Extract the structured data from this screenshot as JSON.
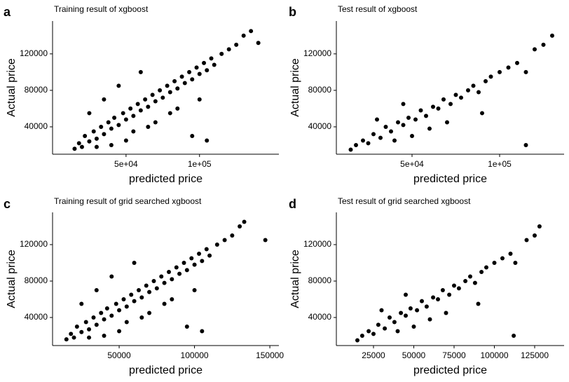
{
  "chart_data": [
    {
      "type": "scatter",
      "panel_label": "a",
      "title": "Training result of xgboost",
      "x_label": "predicted price",
      "y_label": "Actual price",
      "color": "#000000",
      "xlim": [
        0,
        154000
      ],
      "ylim": [
        10000,
        156000
      ],
      "xticks": [
        {
          "value": 50000,
          "label": "5e+04"
        },
        {
          "value": 100000,
          "label": "1e+05"
        }
      ],
      "yticks": [
        40000,
        80000,
        120000
      ],
      "x": [
        15000,
        18000,
        20000,
        22000,
        25000,
        28000,
        30000,
        33000,
        35000,
        38000,
        40000,
        42000,
        45000,
        48000,
        50000,
        53000,
        55000,
        58000,
        60000,
        63000,
        65000,
        68000,
        70000,
        73000,
        75000,
        78000,
        80000,
        83000,
        85000,
        88000,
        90000,
        93000,
        95000,
        98000,
        100000,
        103000,
        105000,
        108000,
        110000,
        115000,
        120000,
        125000,
        130000,
        135000,
        140000,
        25000,
        35000,
        45000,
        60000,
        95000,
        105000,
        40000,
        55000,
        70000,
        85000,
        30000,
        50000,
        65000,
        80000,
        100000
      ],
      "values": [
        16000,
        22000,
        18000,
        30000,
        24000,
        35000,
        27000,
        40000,
        32000,
        45000,
        38000,
        50000,
        42000,
        55000,
        48000,
        60000,
        52000,
        65000,
        58000,
        70000,
        62000,
        75000,
        68000,
        80000,
        72000,
        85000,
        78000,
        90000,
        82000,
        95000,
        88000,
        100000,
        92000,
        105000,
        98000,
        110000,
        102000,
        115000,
        108000,
        120000,
        125000,
        130000,
        140000,
        145000,
        132000,
        55000,
        70000,
        85000,
        100000,
        30000,
        25000,
        20000,
        35000,
        45000,
        60000,
        18000,
        25000,
        40000,
        55000,
        70000
      ]
    },
    {
      "type": "scatter",
      "panel_label": "b",
      "title": "Test result of xgboost",
      "x_label": "predicted price",
      "y_label": "Actual price",
      "color": "#000000",
      "xlim": [
        6800,
        136800
      ],
      "ylim": [
        10000,
        156000
      ],
      "xticks": [
        {
          "value": 50000,
          "label": "5e+04"
        },
        {
          "value": 100000,
          "label": "1e+05"
        }
      ],
      "yticks": [
        40000,
        80000,
        120000
      ],
      "x": [
        15000,
        18000,
        22000,
        25000,
        28000,
        32000,
        35000,
        38000,
        42000,
        45000,
        48000,
        52000,
        55000,
        58000,
        62000,
        65000,
        68000,
        72000,
        75000,
        78000,
        82000,
        85000,
        88000,
        92000,
        95000,
        100000,
        105000,
        110000,
        115000,
        120000,
        125000,
        130000,
        40000,
        50000,
        60000,
        70000,
        90000,
        115000,
        30000,
        45000
      ],
      "values": [
        15000,
        20000,
        25000,
        22000,
        32000,
        28000,
        40000,
        35000,
        45000,
        42000,
        50000,
        48000,
        58000,
        52000,
        62000,
        60000,
        70000,
        65000,
        75000,
        72000,
        80000,
        85000,
        78000,
        90000,
        95000,
        100000,
        105000,
        110000,
        100000,
        125000,
        130000,
        140000,
        25000,
        30000,
        38000,
        45000,
        55000,
        20000,
        48000,
        65000
      ]
    },
    {
      "type": "scatter",
      "panel_label": "c",
      "title": "Training result of grid searched xgboost",
      "x_label": "predicted price",
      "y_label": "Actual price",
      "color": "#000000",
      "xlim": [
        5800,
        156000
      ],
      "ylim": [
        9200,
        155400
      ],
      "xticks": [
        50000,
        100000,
        150000
      ],
      "yticks": [
        40000,
        80000,
        120000
      ],
      "x": [
        15000,
        18000,
        20000,
        22000,
        25000,
        28000,
        30000,
        33000,
        35000,
        38000,
        40000,
        42000,
        45000,
        48000,
        50000,
        53000,
        55000,
        58000,
        60000,
        63000,
        65000,
        68000,
        70000,
        73000,
        75000,
        78000,
        80000,
        83000,
        85000,
        88000,
        90000,
        93000,
        95000,
        98000,
        100000,
        103000,
        105000,
        108000,
        110000,
        115000,
        120000,
        125000,
        130000,
        133000,
        147000,
        25000,
        35000,
        45000,
        60000,
        95000,
        105000,
        40000,
        55000,
        70000,
        85000,
        30000,
        50000,
        65000,
        80000,
        100000
      ],
      "values": [
        16000,
        22000,
        18000,
        30000,
        24000,
        35000,
        27000,
        40000,
        32000,
        45000,
        38000,
        50000,
        42000,
        55000,
        48000,
        60000,
        52000,
        65000,
        58000,
        70000,
        62000,
        75000,
        68000,
        80000,
        72000,
        85000,
        78000,
        90000,
        82000,
        95000,
        88000,
        100000,
        92000,
        105000,
        98000,
        110000,
        102000,
        115000,
        108000,
        120000,
        125000,
        130000,
        140000,
        145000,
        125000,
        55000,
        70000,
        85000,
        100000,
        30000,
        25000,
        20000,
        35000,
        45000,
        60000,
        18000,
        25000,
        40000,
        55000,
        70000
      ]
    },
    {
      "type": "scatter",
      "panel_label": "d",
      "title": "Test result of grid searched xgboost",
      "x_label": "predicted price",
      "y_label": "Actual price",
      "color": "#000000",
      "xlim": [
        1960,
        143260
      ],
      "ylim": [
        9200,
        155400
      ],
      "xticks": [
        25000,
        50000,
        75000,
        100000,
        125000
      ],
      "yticks": [
        40000,
        80000,
        120000
      ],
      "x": [
        15000,
        18000,
        22000,
        25000,
        28000,
        32000,
        35000,
        38000,
        42000,
        45000,
        48000,
        52000,
        55000,
        58000,
        62000,
        65000,
        68000,
        72000,
        75000,
        78000,
        82000,
        85000,
        88000,
        92000,
        95000,
        100000,
        105000,
        110000,
        113000,
        120000,
        125000,
        128000,
        40000,
        50000,
        60000,
        70000,
        90000,
        112000,
        30000,
        45000
      ],
      "values": [
        15000,
        20000,
        25000,
        22000,
        32000,
        28000,
        40000,
        35000,
        45000,
        42000,
        50000,
        48000,
        58000,
        52000,
        62000,
        60000,
        70000,
        65000,
        75000,
        72000,
        80000,
        85000,
        78000,
        90000,
        95000,
        100000,
        105000,
        110000,
        100000,
        125000,
        130000,
        140000,
        25000,
        30000,
        38000,
        45000,
        55000,
        20000,
        48000,
        65000
      ]
    }
  ]
}
